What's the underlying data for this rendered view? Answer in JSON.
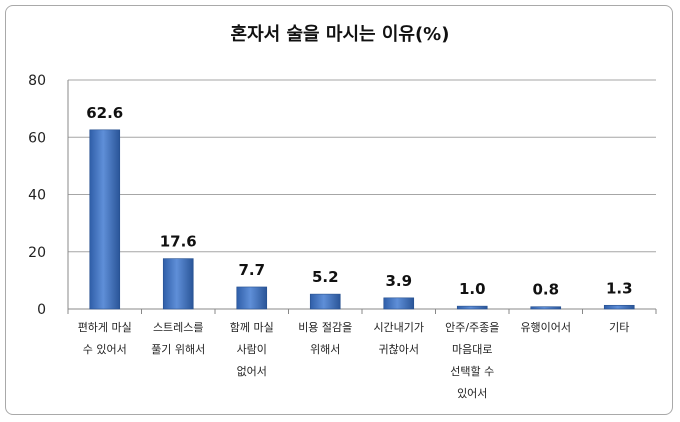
{
  "chart_data": {
    "type": "bar",
    "title": "혼자서 술을 마시는 이유(%)",
    "categories": [
      [
        "편하게 마실",
        "수 있어서"
      ],
      [
        "스트레스를",
        "풀기 위해서"
      ],
      [
        "함께 마실",
        "사람이",
        "없어서"
      ],
      [
        "비용 절감을",
        "위해서"
      ],
      [
        "시간내기가",
        "귀찮아서"
      ],
      [
        "안주/주종을",
        "마음대로",
        "선택할 수",
        "있어서"
      ],
      [
        "유행이어서"
      ],
      [
        "기타"
      ]
    ],
    "values": [
      62.6,
      17.6,
      7.7,
      5.2,
      3.9,
      1.0,
      0.8,
      1.3
    ],
    "value_labels": [
      "62.6",
      "17.6",
      "7.7",
      "5.2",
      "3.9",
      "1.0",
      "0.8",
      "1.3"
    ],
    "y_ticks": [
      "0",
      "20",
      "40",
      "60",
      "80"
    ],
    "ylim": [
      0,
      80
    ],
    "grid": true,
    "bar_color": "#3f6fb8",
    "grid_color": "#a6a6a6"
  }
}
